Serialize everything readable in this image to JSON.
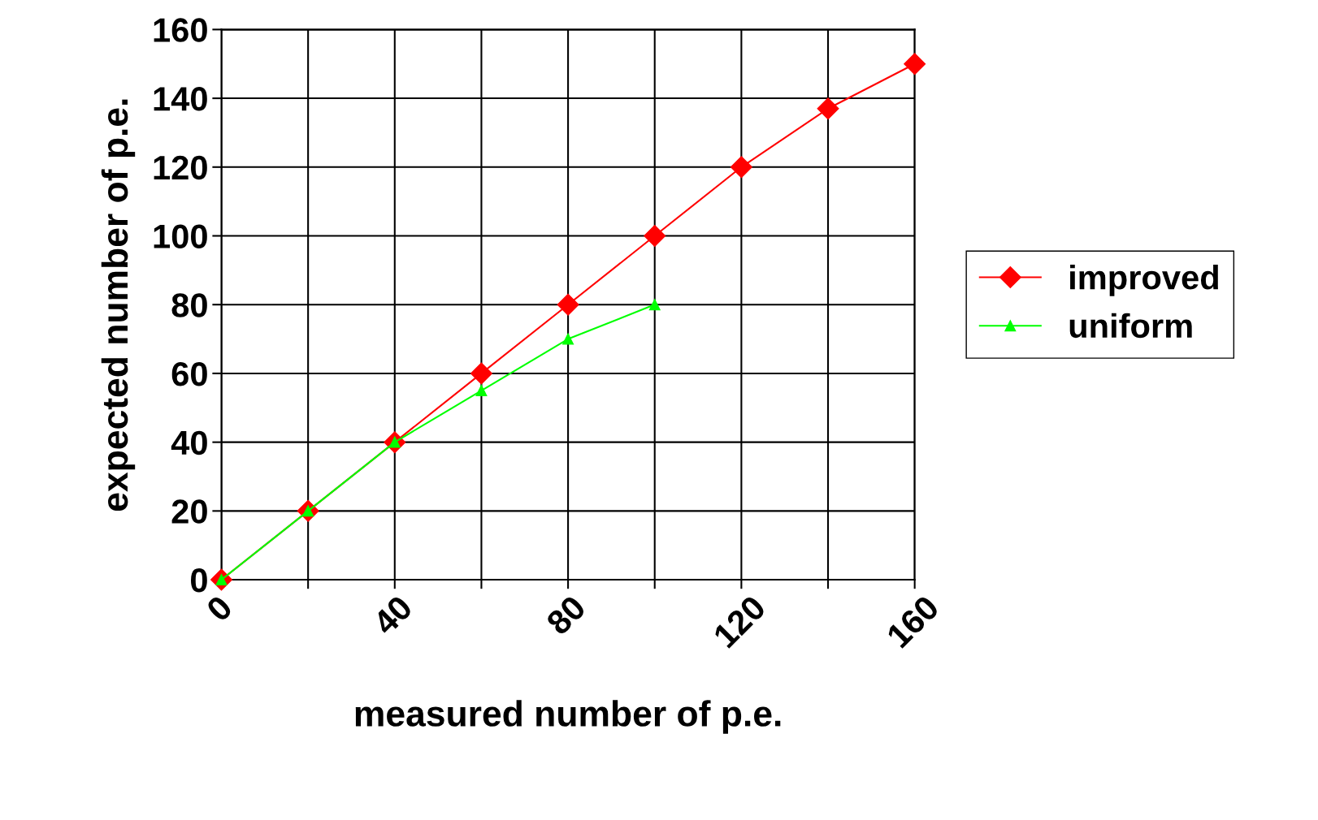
{
  "chart_data": {
    "type": "line",
    "xlabel": "measured number of p.e.",
    "ylabel": "expected number of p.e.",
    "series": [
      {
        "name": "improved",
        "color": "#ff0000",
        "marker": "diamond",
        "x": [
          0,
          20,
          40,
          60,
          80,
          100,
          120,
          140,
          160
        ],
        "values": [
          0,
          20,
          40,
          60,
          80,
          100,
          120,
          137,
          150
        ]
      },
      {
        "name": "uniform",
        "color": "#00ff00",
        "marker": "triangle",
        "x": [
          0,
          20,
          40,
          60,
          80,
          100
        ],
        "values": [
          0,
          20,
          40,
          55,
          70,
          80
        ]
      }
    ],
    "xlim": [
      0,
      160
    ],
    "xticks": [
      0,
      {
        "value": 20,
        "label": null
      },
      40,
      {
        "value": 60,
        "label": null
      },
      80,
      {
        "value": 100,
        "label": null
      },
      120,
      {
        "value": 140,
        "label": null
      },
      160
    ],
    "ylim": [
      0,
      160
    ],
    "yticks": [
      0,
      20,
      40,
      60,
      80,
      100,
      120,
      140,
      160
    ],
    "grid": true,
    "legend": "right",
    "line_style": "solid"
  }
}
